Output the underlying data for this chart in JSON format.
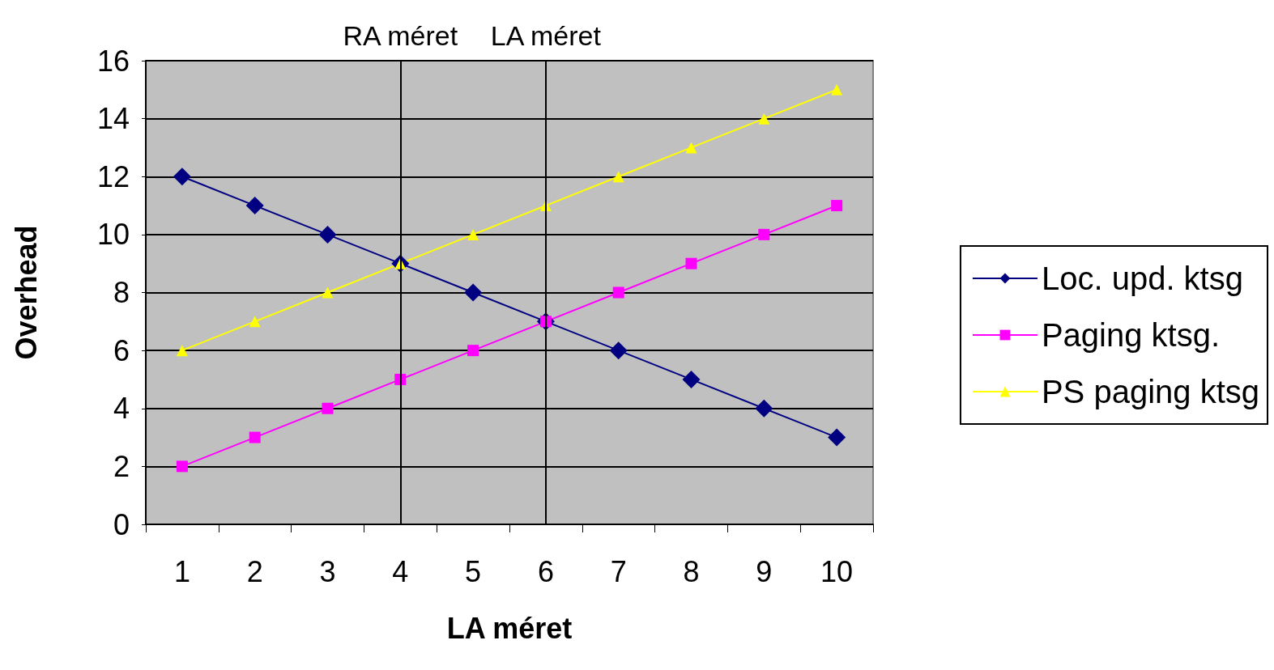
{
  "chart_data": {
    "type": "line",
    "xlabel": "LA méret",
    "ylabel": "Overhead",
    "categories": [
      "1",
      "2",
      "3",
      "4",
      "5",
      "6",
      "7",
      "8",
      "9",
      "10"
    ],
    "series": [
      {
        "name": "Loc. upd. ktsg",
        "color": "#000080",
        "marker": "diamond",
        "values": [
          12,
          11,
          10,
          9,
          8,
          7,
          6,
          5,
          4,
          3
        ]
      },
      {
        "name": "Paging ktsg.",
        "color": "#ff00ff",
        "marker": "square",
        "values": [
          2,
          3,
          4,
          5,
          6,
          7,
          8,
          9,
          10,
          11
        ]
      },
      {
        "name": "PS paging ktsg",
        "color": "#ffff00",
        "marker": "triangle",
        "values": [
          6,
          7,
          8,
          9,
          10,
          11,
          12,
          13,
          14,
          15
        ]
      }
    ],
    "ylim": [
      0,
      16
    ],
    "yticks": [
      0,
      2,
      4,
      6,
      8,
      10,
      12,
      14,
      16
    ],
    "grid": "y",
    "legend": "right",
    "line_style": "solid",
    "ref_lines": [
      {
        "axis": "x",
        "value": "4",
        "label": "RA méret",
        "color": "#000000"
      },
      {
        "axis": "x",
        "value": "6",
        "label": "LA méret",
        "color": "#000000"
      }
    ]
  }
}
